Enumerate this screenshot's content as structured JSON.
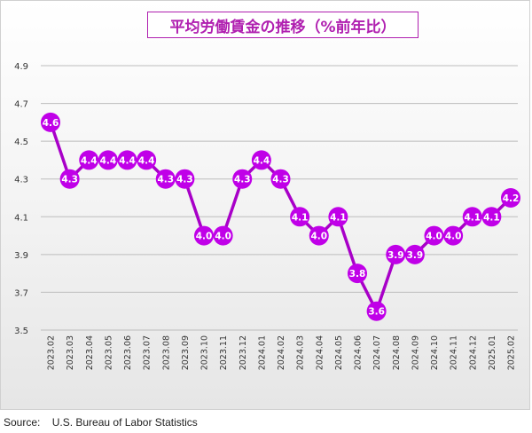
{
  "title": "平均労働賃金の推移（%前年比）",
  "source_label": "Source:",
  "source_text": "U.S. Bureau of Labor Statistics",
  "colors": {
    "line": "#a800c8",
    "marker": "#c000e8",
    "title": "#b020b0",
    "grid": "#bdbdbd"
  },
  "chart_data": {
    "type": "line",
    "title": "平均労働賃金の推移（%前年比）",
    "xlabel": "",
    "ylabel": "",
    "ylim": [
      3.5,
      4.9
    ],
    "yticks": [
      "3.5",
      "3.7",
      "3.9",
      "4.1",
      "4.3",
      "4.5",
      "4.7",
      "4.9"
    ],
    "grid": true,
    "categories": [
      "2023.02",
      "2023.03",
      "2023.04",
      "2023.05",
      "2023.06",
      "2023.07",
      "2023.08",
      "2023.09",
      "2023.10",
      "2023.11",
      "2023.12",
      "2024.01",
      "2024.02",
      "2024.03",
      "2024.04",
      "2024.05",
      "2024.06",
      "2024.07",
      "2024.08",
      "2024.09",
      "2024.10",
      "2024.11",
      "2024.12",
      "2025.01",
      "2025.02"
    ],
    "values": [
      4.6,
      4.3,
      4.4,
      4.4,
      4.4,
      4.4,
      4.3,
      4.3,
      4.0,
      4.0,
      4.3,
      4.4,
      4.3,
      4.1,
      4.0,
      4.1,
      3.8,
      3.6,
      3.9,
      3.9,
      4.0,
      4.0,
      4.1,
      4.1,
      4.2
    ],
    "labels": [
      "4.6",
      "4.3",
      "4.4",
      "4.4",
      "4.4",
      "4.4",
      "4.3",
      "4.3",
      "4.0",
      "4.0",
      "4.3",
      "4.4",
      "4.3",
      "4.1",
      "4.0",
      "4.1",
      "3.8",
      "3.6",
      "3.9",
      "3.9",
      "4.0",
      "4.0",
      "4.1",
      "4.1",
      "4.2"
    ]
  }
}
